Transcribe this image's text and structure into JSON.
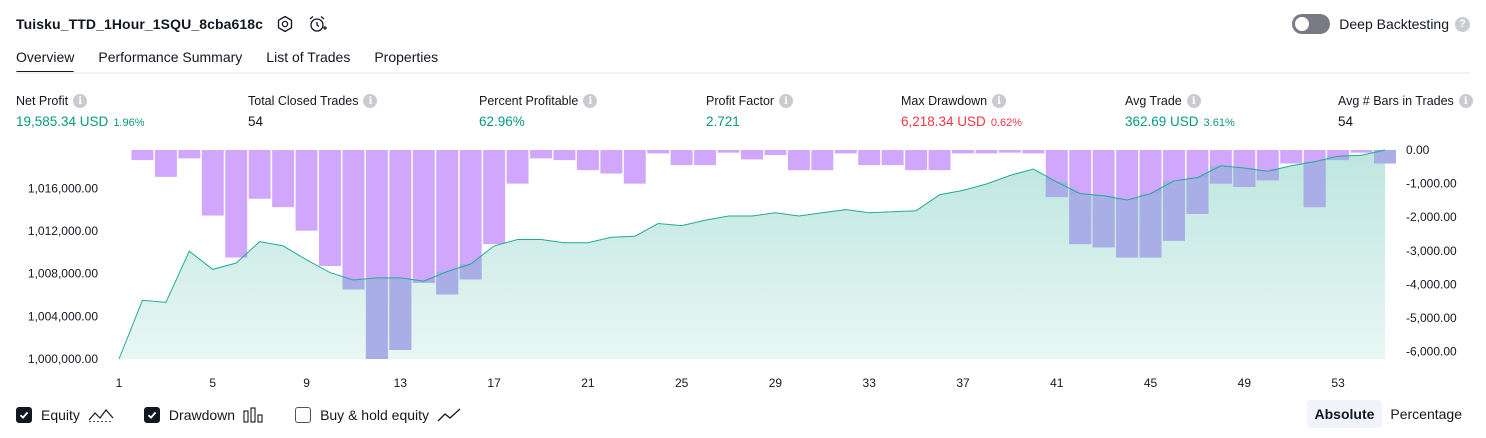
{
  "header": {
    "title": "Tuisku_TTD_1Hour_1SQU_8cba618c",
    "settings_icon": "gear-icon",
    "alert_icon": "alarm-clock-icon"
  },
  "deep_backtesting": {
    "label": "Deep Backtesting",
    "enabled": false,
    "help": "?"
  },
  "tabs": [
    {
      "label": "Overview",
      "active": true
    },
    {
      "label": "Performance Summary",
      "active": false
    },
    {
      "label": "List of Trades",
      "active": false
    },
    {
      "label": "Properties",
      "active": false
    }
  ],
  "metrics": {
    "net_profit": {
      "label": "Net Profit",
      "value": "19,585.34 USD",
      "sub": "1.96%"
    },
    "total_closed_trades": {
      "label": "Total Closed Trades",
      "value": "54"
    },
    "percent_profitable": {
      "label": "Percent Profitable",
      "value": "62.96%"
    },
    "profit_factor": {
      "label": "Profit Factor",
      "value": "2.721"
    },
    "max_drawdown": {
      "label": "Max Drawdown",
      "value": "6,218.34 USD",
      "sub": "0.62%"
    },
    "avg_trade": {
      "label": "Avg Trade",
      "value": "362.69 USD",
      "sub": "3.61%"
    },
    "avg_bars": {
      "label": "Avg # Bars in Trades",
      "value": "54"
    }
  },
  "info_glyph": "i",
  "chart_data": {
    "type": "area",
    "x": [
      1,
      2,
      3,
      4,
      5,
      6,
      7,
      8,
      9,
      10,
      11,
      12,
      13,
      14,
      15,
      16,
      17,
      18,
      19,
      20,
      21,
      22,
      23,
      24,
      25,
      26,
      27,
      28,
      29,
      30,
      31,
      32,
      33,
      34,
      35,
      36,
      37,
      38,
      39,
      40,
      41,
      42,
      43,
      44,
      45,
      46,
      47,
      48,
      49,
      50,
      51,
      52,
      53,
      54,
      55
    ],
    "series": [
      {
        "name": "Equity",
        "axis": "left",
        "values": [
          1000000,
          1005500,
          1005300,
          1010100,
          1008400,
          1009000,
          1011000,
          1010600,
          1009300,
          1008100,
          1007400,
          1007600,
          1007600,
          1007300,
          1008200,
          1008900,
          1010600,
          1011200,
          1011200,
          1010900,
          1010900,
          1011400,
          1011500,
          1012700,
          1012500,
          1013000,
          1013400,
          1013400,
          1013700,
          1013400,
          1013700,
          1014000,
          1013700,
          1013800,
          1013900,
          1015400,
          1015800,
          1016400,
          1017200,
          1017800,
          1016600,
          1015500,
          1015300,
          1014900,
          1015500,
          1016700,
          1017000,
          1018100,
          1017900,
          1017600,
          1018100,
          1018500,
          1019000,
          1019100,
          1019585
        ]
      },
      {
        "name": "Drawdown",
        "axis": "right",
        "values": [
          0,
          -300,
          -800,
          -250,
          -1950,
          -3200,
          -1450,
          -1700,
          -2400,
          -3450,
          -4150,
          -6218,
          -5950,
          -3950,
          -4300,
          -3850,
          -2800,
          -1000,
          -250,
          -300,
          -600,
          -700,
          -1000,
          -100,
          -450,
          -450,
          -80,
          -280,
          -150,
          -600,
          -600,
          -100,
          -450,
          -450,
          -600,
          -600,
          -100,
          -100,
          -80,
          -100,
          -1400,
          -2800,
          -2900,
          -3200,
          -3200,
          -2700,
          -1900,
          -1000,
          -1100,
          -900,
          -400,
          -1700,
          -300,
          -80,
          -400
        ]
      }
    ],
    "x_ticks": [
      "1",
      "5",
      "9",
      "13",
      "17",
      "21",
      "25",
      "29",
      "33",
      "37",
      "41",
      "45",
      "49",
      "53"
    ],
    "y_left_ticks": [
      "1,000,000.00",
      "1,004,000.00",
      "1,008,000.00",
      "1,012,000.00",
      "1,016,000.00"
    ],
    "y_right_ticks": [
      "0.00",
      "-1,000.00",
      "-2,000.00",
      "-3,000.00",
      "-4,000.00",
      "-5,000.00",
      "-6,000.00"
    ],
    "ylim_left": [
      1000000,
      1019585
    ],
    "ylim_right": [
      -6218,
      0
    ],
    "colors": {
      "equity_line": "#22ab94",
      "equity_fill": "#22ab94",
      "drawdown_bar": "#d1a6fd",
      "overlap_bar": "#a9aee6"
    },
    "grid": false
  },
  "legend": {
    "equity": {
      "label": "Equity",
      "checked": true,
      "icon": "equity-line-icon"
    },
    "drawdown": {
      "label": "Drawdown",
      "checked": true,
      "icon": "bar-chart-icon"
    },
    "buy_hold": {
      "label": "Buy & hold equity",
      "checked": false,
      "icon": "trend-line-icon"
    }
  },
  "mode_toggle": {
    "absolute": "Absolute",
    "percentage": "Percentage",
    "active": "absolute"
  }
}
